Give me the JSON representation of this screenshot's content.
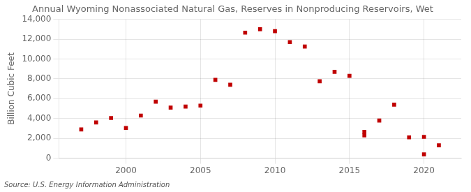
{
  "chart_data": {
    "type": "scatter",
    "title": "Annual Wyoming Nonassociated Natural Gas, Reserves in Nonproducing Reservoirs, Wet",
    "ylabel": "Billion Cubic Feet",
    "source": "Source: U.S. Energy Information Administration",
    "color": "#c00000",
    "marker": "square",
    "grid": true,
    "x": [
      1997,
      1998,
      1999,
      2000,
      2001,
      2002,
      2003,
      2004,
      2005,
      2006,
      2007,
      2008,
      2009,
      2010,
      2011,
      2012,
      2013,
      2014,
      2015,
      2016,
      2016,
      2017,
      2018,
      2019,
      2020,
      2020,
      2021
    ],
    "values": [
      2900,
      3600,
      4050,
      3050,
      4300,
      5700,
      5100,
      5200,
      5300,
      7900,
      7400,
      12650,
      13000,
      12800,
      11700,
      11250,
      7750,
      8700,
      8300,
      2300,
      2650,
      3800,
      5400,
      2100,
      2150,
      380,
      1300
    ],
    "xlim": [
      1995.5,
      2022.5
    ],
    "xticks": [
      2000,
      2005,
      2010,
      2015,
      2020
    ],
    "ylim": [
      0,
      14000
    ],
    "yticks": [
      0,
      {
        "value": 2000,
        "label": "2,000"
      },
      {
        "value": 4000,
        "label": "4,000"
      },
      {
        "value": 6000,
        "label": "6,000"
      },
      {
        "value": 8000,
        "label": "8,000"
      },
      {
        "value": 10000,
        "label": "10,000"
      },
      {
        "value": 12000,
        "label": "12,000"
      },
      {
        "value": 14000,
        "label": "14,000"
      }
    ]
  }
}
